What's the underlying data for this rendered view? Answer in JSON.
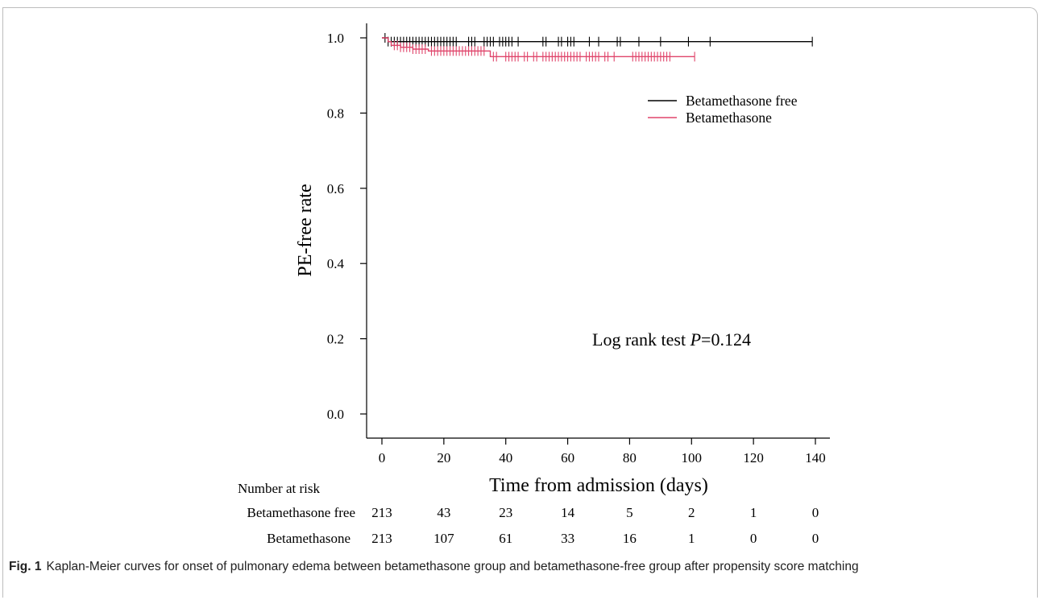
{
  "chart_data": {
    "type": "line",
    "subtype": "kaplan-meier",
    "xlabel": "Time from admission (days)",
    "ylabel": "PE-free rate",
    "xlim": [
      0,
      140
    ],
    "ylim": [
      0,
      1.0
    ],
    "x_ticks": [
      "0",
      "20",
      "40",
      "60",
      "80",
      "100",
      "120",
      "140"
    ],
    "y_ticks": [
      "0.0",
      "0.2",
      "0.4",
      "0.6",
      "0.8",
      "1.0"
    ],
    "grid": false,
    "legend_position": "top-right",
    "annotation": {
      "prefix": "Log rank test ",
      "italic": "P",
      "suffix": "=0.124"
    },
    "series": [
      {
        "name": "Betamethasone free",
        "color": "#000000",
        "steps": [
          [
            0,
            1.0
          ],
          [
            2,
            0.99
          ],
          [
            139,
            0.99
          ]
        ],
        "censored": [
          1,
          2,
          3,
          4,
          5,
          6,
          7,
          8,
          9,
          10,
          11,
          12,
          13,
          14,
          15,
          16,
          17,
          18,
          19,
          20,
          21,
          22,
          23,
          24,
          28,
          29,
          30,
          33,
          34,
          35,
          36,
          38,
          39,
          40,
          41,
          42,
          44,
          52,
          53,
          57,
          58,
          60,
          61,
          62,
          67,
          70,
          76,
          77,
          83,
          90,
          99,
          106,
          139
        ]
      },
      {
        "name": "Betamethasone",
        "color": "#e0456b",
        "steps": [
          [
            0,
            1.0
          ],
          [
            2,
            0.99
          ],
          [
            3,
            0.98
          ],
          [
            6,
            0.975
          ],
          [
            10,
            0.97
          ],
          [
            15,
            0.965
          ],
          [
            35,
            0.95
          ],
          [
            101,
            0.95
          ]
        ],
        "censored": [
          4,
          5,
          6,
          7,
          8,
          9,
          10,
          11,
          12,
          13,
          14,
          16,
          17,
          18,
          19,
          20,
          21,
          22,
          23,
          24,
          25,
          26,
          27,
          28,
          29,
          30,
          31,
          32,
          33,
          36,
          37,
          40,
          41,
          42,
          43,
          44,
          46,
          47,
          49,
          50,
          52,
          53,
          54,
          55,
          56,
          57,
          58,
          59,
          60,
          61,
          62,
          63,
          64,
          66,
          67,
          68,
          69,
          70,
          72,
          73,
          75,
          81,
          82,
          83,
          84,
          85,
          86,
          87,
          88,
          89,
          90,
          91,
          92,
          93,
          101
        ]
      }
    ],
    "risk_table": {
      "header": "Number at risk",
      "rows": [
        {
          "label": "Betamethasone free",
          "values": [
            "213",
            "43",
            "23",
            "14",
            "5",
            "2",
            "1",
            "0"
          ]
        },
        {
          "label": "Betamethasone",
          "values": [
            "213",
            "107",
            "61",
            "33",
            "16",
            "1",
            "0",
            "0"
          ]
        }
      ]
    }
  },
  "caption": {
    "label": "Fig. 1",
    "text": "Kaplan-Meier curves for onset of pulmonary edema between betamethasone group and betamethasone-free group after propensity score matching"
  }
}
